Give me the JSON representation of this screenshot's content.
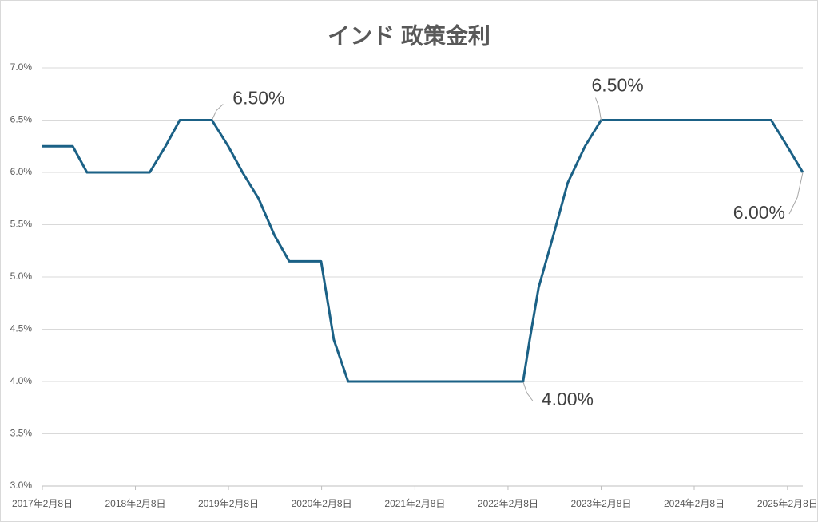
{
  "chart_data": {
    "type": "line",
    "title": "インド 政策金利",
    "x": [
      "2017-02-08",
      "2017-06-07",
      "2017-08-02",
      "2018-04-05",
      "2018-06-06",
      "2018-08-01",
      "2018-12-05",
      "2019-02-07",
      "2019-04-04",
      "2019-06-06",
      "2019-08-07",
      "2019-10-04",
      "2020-02-06",
      "2020-03-27",
      "2020-05-22",
      "2022-04-08",
      "2022-05-04",
      "2022-06-08",
      "2022-08-05",
      "2022-09-30",
      "2022-12-07",
      "2023-02-08",
      "2024-12-06",
      "2025-02-07",
      "2025-04-09"
    ],
    "series": [
      {
        "name": "政策金利",
        "color": "#1b6186",
        "values": [
          6.25,
          6.25,
          6.0,
          6.0,
          6.25,
          6.5,
          6.5,
          6.25,
          6.0,
          5.75,
          5.4,
          5.15,
          5.15,
          4.4,
          4.0,
          4.0,
          4.4,
          4.9,
          5.4,
          5.9,
          6.25,
          6.5,
          6.5,
          6.25,
          6.0
        ],
        "value_labels": [
          null,
          null,
          null,
          null,
          null,
          null,
          "6.50%",
          null,
          null,
          null,
          null,
          null,
          null,
          null,
          null,
          "4.00%",
          null,
          null,
          null,
          null,
          null,
          "6.50%",
          null,
          null,
          "6.00%"
        ]
      }
    ],
    "xlim": [
      "2017-02-08",
      "2025-04-09"
    ],
    "xticks": [
      {
        "value": "2017-02-08",
        "label": "2017年2月8日"
      },
      {
        "value": "2018-02-08",
        "label": "2018年2月8日"
      },
      {
        "value": "2019-02-08",
        "label": "2019年2月8日"
      },
      {
        "value": "2020-02-08",
        "label": "2020年2月8日"
      },
      {
        "value": "2021-02-08",
        "label": "2021年2月8日"
      },
      {
        "value": "2022-02-08",
        "label": "2022年2月8日"
      },
      {
        "value": "2023-02-08",
        "label": "2023年2月8日"
      },
      {
        "value": "2024-02-08",
        "label": "2024年2月8日"
      },
      {
        "value": "2025-02-08",
        "label": "2025年2月8日"
      }
    ],
    "ylim": [
      3,
      7
    ],
    "yticks": [
      {
        "value": 3,
        "label": "3.0%"
      },
      {
        "value": 3.5,
        "label": "3.5%"
      },
      {
        "value": 4,
        "label": "4.0%"
      },
      {
        "value": 4.5,
        "label": "4.5%"
      },
      {
        "value": 5,
        "label": "5.0%"
      },
      {
        "value": 5.5,
        "label": "5.5%"
      },
      {
        "value": 6,
        "label": "6.0%"
      },
      {
        "value": 6.5,
        "label": "6.5%"
      },
      {
        "value": 7,
        "label": "7.0%"
      }
    ],
    "grid": true
  }
}
